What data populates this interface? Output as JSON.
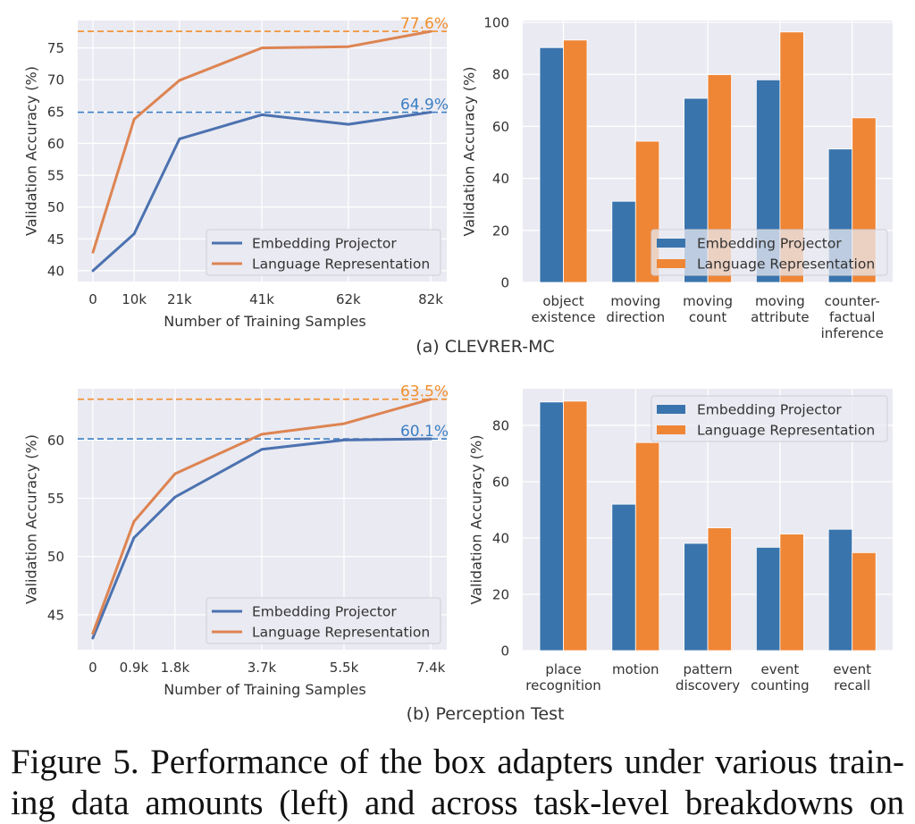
{
  "colors": {
    "plot_bg": "#eaeaf2",
    "grid": "#ffffff",
    "line_blue": "#4c72b0",
    "line_orange": "#dd8452",
    "bar_blue": "#3a74ad",
    "bar_orange": "#ef8636",
    "dash_blue": "#3b7ec2",
    "dash_orange": "#f28e2b",
    "annot_blue": "#3b7ec2",
    "annot_orange": "#f28e2b"
  },
  "sub_captions": {
    "a": "(a) CLEVRER-MC",
    "b": "(b) Perception Test"
  },
  "figure_caption": {
    "line1": "Figure 5.  Performance of the box adapters under various train-",
    "line2": "ing data amounts (left) and across task-level breakdowns on"
  },
  "chart_data": [
    {
      "id": "clevrer-line",
      "type": "line",
      "title": "",
      "xlabel": "Number of Training Samples",
      "ylabel": "Validation Accuracy (%)",
      "x": [
        0,
        10,
        21,
        41,
        62,
        82
      ],
      "x_tick_labels": [
        "0",
        "10k",
        "21k",
        "41k",
        "62k",
        "82k"
      ],
      "xlim": [
        -3.7,
        85.9
      ],
      "ylim": [
        38.3,
        79.3
      ],
      "y_ticks": [
        40,
        45,
        50,
        55,
        60,
        65,
        70,
        75
      ],
      "grid": true,
      "legend": "lower-right",
      "series": [
        {
          "name": "Embedding Projector",
          "values": [
            40.0,
            45.8,
            60.7,
            64.5,
            63.0,
            64.9
          ]
        },
        {
          "name": "Language Representation",
          "values": [
            42.9,
            63.8,
            69.9,
            75.0,
            75.2,
            77.6
          ]
        }
      ],
      "reference_lines": [
        {
          "series": "Embedding Projector",
          "value": 64.9,
          "label": "64.9%"
        },
        {
          "series": "Language Representation",
          "value": 77.6,
          "label": "77.6%"
        }
      ]
    },
    {
      "id": "clevrer-bar",
      "type": "bar",
      "title": "",
      "xlabel": "",
      "ylabel": "Validation Accuracy (%)",
      "categories": [
        [
          "object",
          "existence"
        ],
        [
          "moving",
          "direction"
        ],
        [
          "moving",
          "count"
        ],
        [
          "moving",
          "attribute"
        ],
        [
          "counter-",
          "factual",
          "inference"
        ]
      ],
      "ylim": [
        0,
        100.7
      ],
      "y_ticks": [
        0,
        20,
        40,
        60,
        80,
        100
      ],
      "grid": true,
      "legend": "lower-right",
      "series": [
        {
          "name": "Embedding Projector",
          "values": [
            90.3,
            31.2,
            70.8,
            77.9,
            51.3
          ]
        },
        {
          "name": "Language Representation",
          "values": [
            93.2,
            54.3,
            79.9,
            96.3,
            63.3
          ]
        }
      ]
    },
    {
      "id": "perception-line",
      "type": "line",
      "title": "",
      "xlabel": "Number of Training Samples",
      "ylabel": "Validation Accuracy (%)",
      "x": [
        0,
        0.9,
        1.8,
        3.7,
        5.5,
        7.4
      ],
      "x_tick_labels": [
        "0",
        "0.9k",
        "1.8k",
        "3.7k",
        "5.5k",
        "7.4k"
      ],
      "xlim": [
        -0.33,
        7.75
      ],
      "ylim": [
        42.0,
        64.4
      ],
      "y_ticks": [
        45,
        50,
        55,
        60
      ],
      "grid": true,
      "legend": "lower-right",
      "series": [
        {
          "name": "Embedding Projector",
          "values": [
            43.0,
            51.6,
            55.1,
            59.2,
            60.0,
            60.1
          ]
        },
        {
          "name": "Language Representation",
          "values": [
            43.4,
            53.0,
            57.1,
            60.5,
            61.4,
            63.5
          ]
        }
      ],
      "reference_lines": [
        {
          "series": "Embedding Projector",
          "value": 60.1,
          "label": "60.1%"
        },
        {
          "series": "Language Representation",
          "value": 63.5,
          "label": "63.5%"
        }
      ]
    },
    {
      "id": "perception-bar",
      "type": "bar",
      "title": "",
      "xlabel": "",
      "ylabel": "Validation Accuracy (%)",
      "categories": [
        [
          "place",
          "recognition"
        ],
        [
          "motion"
        ],
        [
          "pattern",
          "discovery"
        ],
        [
          "event",
          "counting"
        ],
        [
          "event",
          "recall"
        ]
      ],
      "ylim": [
        0,
        93
      ],
      "y_ticks": [
        0,
        20,
        40,
        60,
        80
      ],
      "grid": true,
      "legend": "upper-right",
      "series": [
        {
          "name": "Embedding Projector",
          "values": [
            88.3,
            52.0,
            38.1,
            36.7,
            43.1
          ]
        },
        {
          "name": "Language Representation",
          "values": [
            88.6,
            73.9,
            43.6,
            41.4,
            34.8
          ]
        }
      ]
    }
  ]
}
